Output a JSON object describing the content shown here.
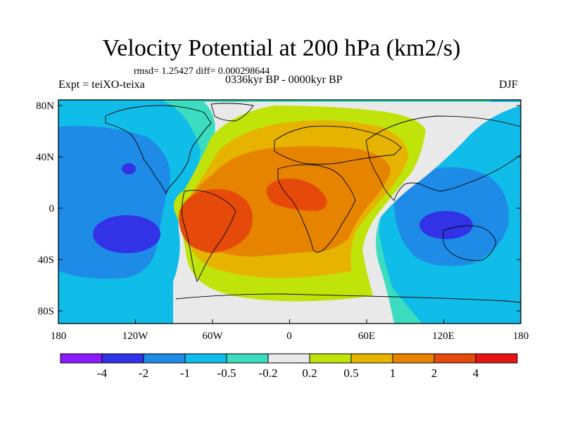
{
  "title": "Velocity Potential at 200 hPa (km2/s)",
  "stats_line": "rmsd= 1.25427 diff= 0.000298644",
  "experiment": "Expt = teiXO-teixa",
  "period": "0336kyr BP - 0000kyr BP",
  "season": "DJF",
  "lat_ticks": [
    "80N",
    "40N",
    "0",
    "40S",
    "80S"
  ],
  "lon_ticks": [
    "180",
    "120W",
    "60W",
    "0",
    "60E",
    "120E",
    "180"
  ],
  "colorbar": {
    "labels": [
      "-4",
      "-2",
      "-1",
      "-0.5",
      "-0.2",
      "0.2",
      "0.5",
      "1",
      "2",
      "4"
    ],
    "colors": [
      "#8c1aff",
      "#3232e6",
      "#1e8ce6",
      "#10bce8",
      "#3cdcc0",
      "#e9e9e9",
      "#c0e40a",
      "#e6b400",
      "#e68400",
      "#e64a0a",
      "#e61414"
    ]
  },
  "map_colors": {
    "cyan_light": "#3cdcc0",
    "cyan": "#10bce8",
    "blue": "#1e8ce6",
    "dark_blue": "#3232e6",
    "neutral": "#e9e9e9",
    "yellow_green": "#c0e40a",
    "orange_yellow": "#e6b400",
    "orange": "#e68400",
    "red_orange": "#e64a0a"
  }
}
